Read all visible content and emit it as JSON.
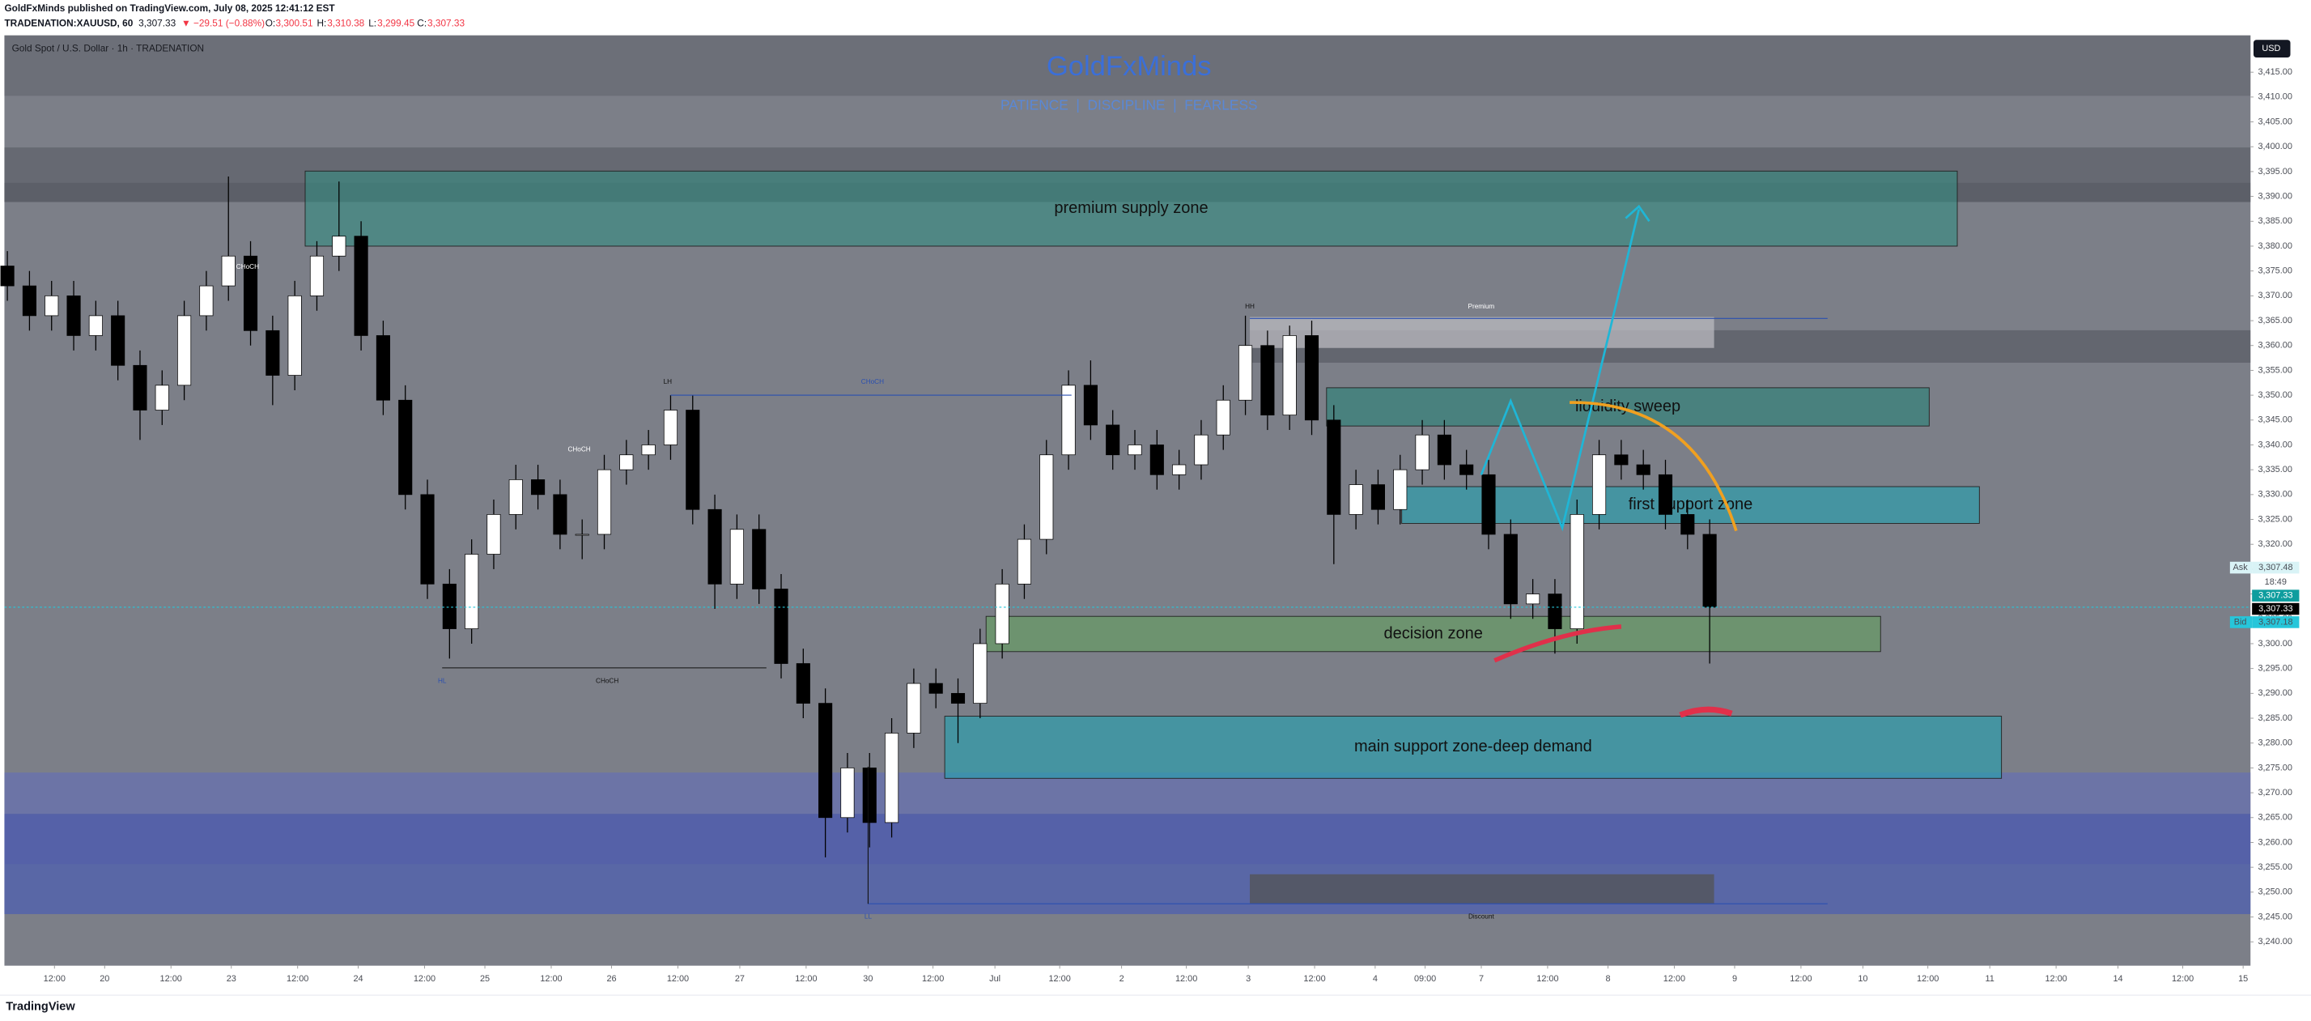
{
  "header": {
    "publisher": "GoldFxMinds published on TradingView.com, July 08, 2025 12:41:12 EST",
    "symbol": "TRADENATION:XAUUSD, 60",
    "price": "3,307.33",
    "change": "▼ −29.51 (−0.88%)",
    "ohlc": [
      {
        "label": "O:",
        "value": "3,300.51"
      },
      {
        "label": "H:",
        "value": "3,310.38"
      },
      {
        "label": "L:",
        "value": "3,299.45"
      },
      {
        "label": "C:",
        "value": "3,307.33"
      }
    ]
  },
  "chart_data": {
    "type": "candlestick",
    "title": "Gold Spot / U.S. Dollar · 1h · TRADENATION",
    "watermark": "GoldFxMinds",
    "tagline": "PATIENCE  |  DISCIPLINE  |  FEARLESS",
    "currency": "USD",
    "up_color": "#ffffff",
    "down_color": "#000000",
    "candles": {
      "open": [
        3376,
        3372,
        3366,
        3370,
        3362,
        3366,
        3356,
        3347,
        3352,
        3366,
        3372,
        3378,
        3363,
        3354,
        3370,
        3378,
        3382,
        3362,
        3349,
        3330,
        3312,
        3303,
        3318,
        3326,
        3333,
        3330,
        3322,
        3322,
        3335,
        3338,
        3340,
        3347,
        3327,
        3312,
        3323,
        3311,
        3296,
        3288,
        3265,
        3275,
        3264,
        3282,
        3292,
        3290,
        3288,
        3300,
        3312,
        3321,
        3338,
        3352,
        3344,
        3338,
        3340,
        3334,
        3336,
        3342,
        3349,
        3360,
        3346,
        3362,
        3345,
        3326,
        3332,
        3327,
        3335,
        3342,
        3336,
        3334,
        3322,
        3308,
        3310,
        3303,
        3326,
        3338,
        3336,
        3334,
        3326,
        3322
      ],
      "high": [
        3379,
        3375,
        3373,
        3373,
        3369,
        3369,
        3359,
        3355,
        3369,
        3375,
        3394,
        3381,
        3366,
        3373,
        3381,
        3393,
        3385,
        3365,
        3352,
        3333,
        3315,
        3321,
        3329,
        3336,
        3336,
        3333,
        3325,
        3338,
        3341,
        3343,
        3350,
        3350,
        3330,
        3326,
        3326,
        3314,
        3299,
        3291,
        3278,
        3278,
        3285,
        3295,
        3295,
        3293,
        3303,
        3315,
        3324,
        3341,
        3355,
        3357,
        3347,
        3343,
        3343,
        3339,
        3345,
        3352,
        3366,
        3363,
        3364,
        3365,
        3348,
        3335,
        3335,
        3338,
        3345,
        3345,
        3339,
        3337,
        3325,
        3313,
        3313,
        3329,
        3341,
        3341,
        3339,
        3337,
        3329,
        3325
      ],
      "low": [
        3369,
        3363,
        3363,
        3359,
        3359,
        3353,
        3341,
        3344,
        3349,
        3363,
        3369,
        3360,
        3348,
        3351,
        3367,
        3375,
        3359,
        3346,
        3327,
        3309,
        3297,
        3300,
        3315,
        3323,
        3327,
        3319,
        3317,
        3319,
        3332,
        3335,
        3337,
        3324,
        3307,
        3309,
        3308,
        3293,
        3285,
        3257,
        3262,
        3259,
        3261,
        3279,
        3287,
        3280,
        3285,
        3297,
        3309,
        3318,
        3335,
        3341,
        3335,
        3335,
        3331,
        3331,
        3333,
        3339,
        3346,
        3343,
        3343,
        3342,
        3316,
        3323,
        3324,
        3324,
        3332,
        3333,
        3331,
        3319,
        3305,
        3305,
        3298,
        3300,
        3323,
        3333,
        3331,
        3323,
        3319,
        3296
      ],
      "close": [
        3372,
        3366,
        3370,
        3362,
        3366,
        3356,
        3347,
        3352,
        3366,
        3372,
        3378,
        3363,
        3354,
        3370,
        3378,
        3382,
        3362,
        3349,
        3330,
        3312,
        3303,
        3318,
        3326,
        3333,
        3330,
        3322,
        3322,
        3335,
        3338,
        3340,
        3347,
        3327,
        3312,
        3323,
        3311,
        3296,
        3288,
        3265,
        3275,
        3264,
        3282,
        3292,
        3290,
        3288,
        3300,
        3312,
        3321,
        3338,
        3352,
        3344,
        3338,
        3340,
        3334,
        3336,
        3342,
        3349,
        3360,
        3346,
        3362,
        3345,
        3326,
        3332,
        3327,
        3335,
        3342,
        3336,
        3334,
        3322,
        3308,
        3310,
        3303,
        3326,
        3338,
        3336,
        3334,
        3326,
        3322,
        3307.33
      ]
    },
    "last_price": 3307.33,
    "last_price_color": "#26c6da",
    "xlim": [
      -0.1333,
      101.4667
    ],
    "ylim": [
      3235.2,
      3422.4
    ],
    "xticks": [
      {
        "value": 2.13,
        "label": "12:00"
      },
      {
        "value": 4.4,
        "label": "20"
      },
      {
        "value": 7.4,
        "label": "12:00"
      },
      {
        "value": 10.13,
        "label": "23"
      },
      {
        "value": 13.13,
        "label": "12:00"
      },
      {
        "value": 15.87,
        "label": "24"
      },
      {
        "value": 18.87,
        "label": "12:00"
      },
      {
        "value": 21.6,
        "label": "25"
      },
      {
        "value": 24.6,
        "label": "12:00"
      },
      {
        "value": 27.33,
        "label": "26"
      },
      {
        "value": 30.33,
        "label": "12:00"
      },
      {
        "value": 33.13,
        "label": "27"
      },
      {
        "value": 36.13,
        "label": "12:00"
      },
      {
        "value": 38.93,
        "label": "30"
      },
      {
        "value": 41.87,
        "label": "12:00"
      },
      {
        "value": 44.67,
        "label": "Jul"
      },
      {
        "value": 47.6,
        "label": "12:00"
      },
      {
        "value": 50.4,
        "label": "2"
      },
      {
        "value": 53.33,
        "label": "12:00"
      },
      {
        "value": 56.13,
        "label": "3"
      },
      {
        "value": 59.13,
        "label": "12:00"
      },
      {
        "value": 61.87,
        "label": "4"
      },
      {
        "value": 64.13,
        "label": "09:00"
      },
      {
        "value": 66.67,
        "label": "7"
      },
      {
        "value": 69.67,
        "label": "12:00"
      },
      {
        "value": 72.4,
        "label": "8"
      },
      {
        "value": 75.4,
        "label": "12:00"
      },
      {
        "value": 78.13,
        "label": "9"
      },
      {
        "value": 81.13,
        "label": "12:00"
      },
      {
        "value": 83.93,
        "label": "10"
      },
      {
        "value": 86.87,
        "label": "12:00"
      },
      {
        "value": 89.67,
        "label": "11"
      },
      {
        "value": 92.67,
        "label": "12:00"
      },
      {
        "value": 95.47,
        "label": "14"
      },
      {
        "value": 98.4,
        "label": "12:00"
      },
      {
        "value": 101.13,
        "label": "15"
      }
    ],
    "yticks": [
      {
        "value": 3240,
        "label": "3,240.00"
      },
      {
        "value": 3245,
        "label": "3,245.00"
      },
      {
        "value": 3250,
        "label": "3,250.00"
      },
      {
        "value": 3255,
        "label": "3,255.00"
      },
      {
        "value": 3260,
        "label": "3,260.00"
      },
      {
        "value": 3265,
        "label": "3,265.00"
      },
      {
        "value": 3270,
        "label": "3,270.00"
      },
      {
        "value": 3275,
        "label": "3,275.00"
      },
      {
        "value": 3280,
        "label": "3,280.00"
      },
      {
        "value": 3285,
        "label": "3,285.00"
      },
      {
        "value": 3290,
        "label": "3,290.00"
      },
      {
        "value": 3295,
        "label": "3,295.00"
      },
      {
        "value": 3300,
        "label": "3,300.00"
      },
      {
        "value": 3305,
        "label": "3,305.00"
      },
      {
        "value": 3310,
        "label": "3,310.00"
      },
      {
        "value": 3315,
        "label": "3,315.00"
      },
      {
        "value": 3320,
        "label": "3,320.00"
      },
      {
        "value": 3325,
        "label": "3,325.00"
      },
      {
        "value": 3330,
        "label": "3,330.00"
      },
      {
        "value": 3335,
        "label": "3,335.00"
      },
      {
        "value": 3340,
        "label": "3,340.00"
      },
      {
        "value": 3345,
        "label": "3,345.00"
      },
      {
        "value": 3350,
        "label": "3,350.00"
      },
      {
        "value": 3355,
        "label": "3,355.00"
      },
      {
        "value": 3360,
        "label": "3,360.00"
      },
      {
        "value": 3365,
        "label": "3,365.00"
      },
      {
        "value": 3370,
        "label": "3,370.00"
      },
      {
        "value": 3375,
        "label": "3,375.00"
      },
      {
        "value": 3380,
        "label": "3,380.00"
      },
      {
        "value": 3385,
        "label": "3,385.00"
      },
      {
        "value": 3390,
        "label": "3,390.00"
      },
      {
        "value": 3395,
        "label": "3,395.00"
      },
      {
        "value": 3400,
        "label": "3,400.00"
      },
      {
        "value": 3405,
        "label": "3,405.00"
      },
      {
        "value": 3410,
        "label": "3,410.00"
      },
      {
        "value": 3415,
        "label": "3,415.00"
      }
    ],
    "zones": [
      {
        "label": "premium supply zone",
        "ylim": [
          3380.0,
          3395.1
        ],
        "xlim": [
          13.47,
          88.2
        ],
        "color": "rgba(52,140,130,0.6)"
      },
      {
        "label": "liquidity sweep",
        "ylim": [
          3343.8,
          3351.5
        ],
        "xlim": [
          59.67,
          86.93
        ],
        "color": "rgba(40,130,120,0.6)"
      },
      {
        "label": "first support zone",
        "ylim": [
          3324.2,
          3331.6
        ],
        "xlim": [
          63.07,
          89.2
        ],
        "color": "rgba(40,160,175,0.65)"
      },
      {
        "label": "decision zone",
        "ylim": [
          3298.4,
          3305.5
        ],
        "xlim": [
          44.27,
          84.73
        ],
        "color": "rgba(100,160,95,0.6)"
      },
      {
        "label": "main support zone-deep demand",
        "ylim": [
          3272.9,
          3285.4
        ],
        "xlim": [
          42.4,
          90.2
        ],
        "color": "rgba(40,160,175,0.65)"
      }
    ],
    "annotations": [
      "CHoCH",
      "LH",
      "HL",
      "CHoCH",
      "HH",
      "LL",
      "Premium",
      "Discount",
      "CHoCH",
      "CHoCH"
    ],
    "price_tags": [
      {
        "name": "Ask",
        "text": "3,307.48"
      },
      {
        "text": "18:49"
      },
      {
        "text": "3,307.33"
      },
      {
        "text": "3,307.33"
      },
      {
        "name": "Bid",
        "text": "3,307.18"
      }
    ]
  },
  "footer": {
    "brand": "TradingView"
  }
}
